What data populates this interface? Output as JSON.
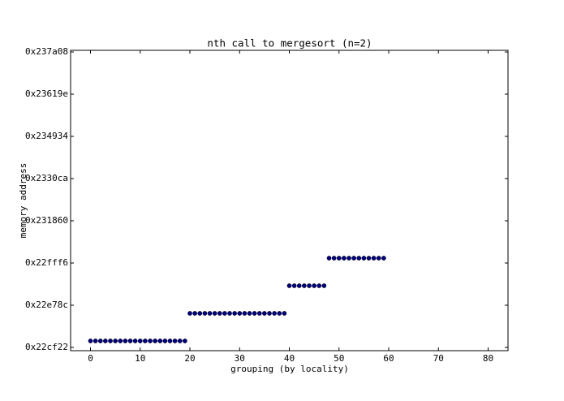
{
  "chart_data": {
    "type": "scatter",
    "title": "nth call to mergesort (n=2)",
    "x_label": "grouping (by locality)",
    "y_label": "memory address",
    "x": [
      0,
      1,
      2,
      3,
      4,
      5,
      6,
      7,
      8,
      9,
      10,
      11,
      12,
      13,
      14,
      15,
      16,
      17,
      18,
      19,
      20,
      21,
      22,
      23,
      24,
      25,
      26,
      27,
      28,
      29,
      30,
      31,
      32,
      33,
      34,
      35,
      36,
      37,
      38,
      39,
      40,
      41,
      42,
      43,
      44,
      45,
      46,
      47,
      48,
      49,
      50,
      51,
      52,
      53,
      54,
      55,
      56,
      57,
      58,
      59
    ],
    "series": [
      {
        "color": "#000080",
        "values": [
          2282212,
          2282212,
          2282212,
          2282212,
          2282212,
          2282212,
          2282212,
          2282212,
          2282212,
          2282212,
          2282212,
          2282212,
          2282212,
          2282212,
          2282212,
          2282212,
          2282212,
          2282212,
          2282212,
          2282212,
          2286298,
          2286298,
          2286298,
          2286298,
          2286298,
          2286298,
          2286298,
          2286298,
          2286298,
          2286298,
          2286298,
          2286298,
          2286298,
          2286298,
          2286298,
          2286298,
          2286298,
          2286298,
          2286298,
          2286298,
          2290385,
          2290385,
          2290385,
          2290385,
          2290385,
          2290385,
          2290385,
          2290385,
          2294471,
          2294471,
          2294471,
          2294471,
          2294471,
          2294471,
          2294471,
          2294471,
          2294471,
          2294471,
          2294471,
          2294471
        ]
      }
    ],
    "xlim": [
      -4,
      84
    ],
    "xticks": [
      0,
      10,
      20,
      30,
      40,
      50,
      60,
      70,
      80
    ],
    "ylim": [
      2280770,
      2325240
    ],
    "yticks": [
      {
        "value": 2281250,
        "label": "0x22cf22"
      },
      {
        "value": 2287500,
        "label": "0x22e78c"
      },
      {
        "value": 2293750,
        "label": "0x22fff6"
      },
      {
        "value": 2300000,
        "label": "0x231860"
      },
      {
        "value": 2306250,
        "label": "0x2330ca"
      },
      {
        "value": 2312500,
        "label": "0x234934"
      },
      {
        "value": 2318750,
        "label": "0x23619e"
      },
      {
        "value": 2325000,
        "label": "0x237a08"
      }
    ],
    "grid": false
  }
}
